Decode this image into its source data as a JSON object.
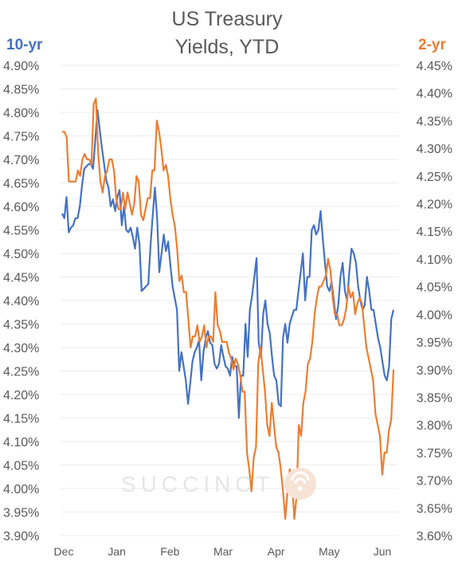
{
  "chart_data": {
    "type": "line",
    "title": [
      "US Treasury",
      "Yields, YTD"
    ],
    "x_ticks": [
      "Dec",
      "Jan",
      "Feb",
      "Mar",
      "Apr",
      "May",
      "Jun"
    ],
    "left_axis": {
      "label": "10-yr",
      "ylim": [
        3.9,
        4.9
      ],
      "ticks": [
        "3.90%",
        "3.95%",
        "4.00%",
        "4.05%",
        "4.10%",
        "4.15%",
        "4.20%",
        "4.25%",
        "4.30%",
        "4.35%",
        "4.40%",
        "4.45%",
        "4.50%",
        "4.55%",
        "4.60%",
        "4.65%",
        "4.70%",
        "4.75%",
        "4.80%",
        "4.85%",
        "4.90%"
      ]
    },
    "right_axis": {
      "label": "2-yr",
      "ylim": [
        3.6,
        4.45
      ],
      "ticks": [
        "3.60%",
        "3.65%",
        "3.70%",
        "3.75%",
        "3.80%",
        "3.85%",
        "3.90%",
        "3.95%",
        "4.00%",
        "4.05%",
        "4.10%",
        "4.15%",
        "4.20%",
        "4.25%",
        "4.30%",
        "4.35%",
        "4.40%",
        "4.45%"
      ]
    },
    "grid": "horizontal",
    "series": [
      {
        "name": "10-yr",
        "axis": "left",
        "color": "#4472c4",
        "values": [
          4.585,
          4.575,
          4.62,
          4.545,
          4.555,
          4.56,
          4.575,
          4.575,
          4.6,
          4.645,
          4.68,
          4.685,
          4.69,
          4.69,
          4.68,
          4.74,
          4.805,
          4.765,
          4.725,
          4.69,
          4.655,
          4.64,
          4.6,
          4.615,
          4.59,
          4.62,
          4.635,
          4.56,
          4.6,
          4.55,
          4.545,
          4.555,
          4.535,
          4.51,
          4.555,
          4.52,
          4.42,
          4.425,
          4.43,
          4.435,
          4.515,
          4.58,
          4.64,
          4.575,
          4.46,
          4.5,
          4.54,
          4.505,
          4.525,
          4.475,
          4.43,
          4.405,
          4.38,
          4.25,
          4.29,
          4.26,
          4.23,
          4.18,
          4.225,
          4.27,
          4.29,
          4.3,
          4.315,
          4.23,
          4.29,
          4.32,
          4.335,
          4.31,
          4.305,
          4.265,
          4.255,
          4.265,
          4.305,
          4.28,
          4.26,
          4.255,
          4.24,
          4.28,
          4.26,
          4.26,
          4.15,
          4.24,
          4.24,
          4.35,
          4.28,
          4.38,
          4.41,
          4.45,
          4.49,
          4.31,
          4.28,
          4.37,
          4.4,
          4.35,
          4.33,
          4.28,
          4.24,
          4.23,
          4.18,
          4.175,
          4.32,
          4.35,
          4.31,
          4.35,
          4.365,
          4.38,
          4.38,
          4.42,
          4.46,
          4.5,
          4.4,
          4.45,
          4.45,
          4.55,
          4.56,
          4.54,
          4.55,
          4.59,
          4.53,
          4.48,
          4.43,
          4.42,
          4.44,
          4.4,
          4.36,
          4.39,
          4.45,
          4.48,
          4.42,
          4.4,
          4.46,
          4.51,
          4.5,
          4.48,
          4.43,
          4.4,
          4.38,
          4.39,
          4.45,
          4.42,
          4.38,
          4.38,
          4.35,
          4.32,
          4.3,
          4.27,
          4.24,
          4.23,
          4.26,
          4.36,
          4.38
        ]
      },
      {
        "name": "2-yr",
        "axis": "right",
        "color": "#ed7d31",
        "values": [
          4.33,
          4.33,
          4.32,
          4.24,
          4.24,
          4.24,
          4.24,
          4.26,
          4.25,
          4.28,
          4.29,
          4.28,
          4.28,
          4.27,
          4.38,
          4.39,
          4.29,
          4.24,
          4.22,
          4.25,
          4.26,
          4.28,
          4.28,
          4.26,
          4.21,
          4.19,
          4.19,
          4.22,
          4.19,
          4.22,
          4.2,
          4.18,
          4.2,
          4.25,
          4.24,
          4.18,
          4.17,
          4.19,
          4.21,
          4.21,
          4.26,
          4.26,
          4.35,
          4.33,
          4.3,
          4.26,
          4.27,
          4.25,
          4.21,
          4.18,
          4.16,
          4.12,
          4.06,
          4.07,
          4.04,
          4.04,
          3.99,
          3.94,
          3.96,
          3.96,
          3.98,
          3.95,
          3.96,
          3.98,
          3.94,
          3.96,
          3.96,
          3.95,
          4.04,
          3.98,
          3.97,
          3.95,
          3.95,
          3.95,
          3.93,
          3.92,
          3.9,
          3.92,
          3.91,
          3.89,
          3.86,
          3.86,
          3.75,
          3.72,
          3.68,
          3.74,
          3.76,
          3.91,
          3.94,
          3.9,
          3.86,
          3.8,
          3.78,
          3.84,
          3.8,
          3.76,
          3.75,
          3.72,
          3.68,
          3.63,
          3.68,
          3.72,
          3.7,
          3.63,
          3.67,
          3.8,
          3.78,
          3.84,
          3.86,
          3.91,
          3.92,
          3.95,
          4.0,
          4.03,
          4.05,
          4.05,
          4.06,
          4.07,
          4.1,
          4.08,
          4.03,
          4.0,
          4.0,
          3.98,
          3.98,
          3.99,
          4.01,
          4.05,
          4.03,
          4.04,
          4.0,
          4.02,
          4.03,
          4.02,
          3.98,
          3.94,
          3.92,
          3.9,
          3.88,
          3.82,
          3.8,
          3.78,
          3.71,
          3.75,
          3.75,
          3.79,
          3.81,
          3.9
        ]
      }
    ]
  },
  "watermark": "SUCCINCT",
  "watermark_icon": "succinct-logo-icon"
}
